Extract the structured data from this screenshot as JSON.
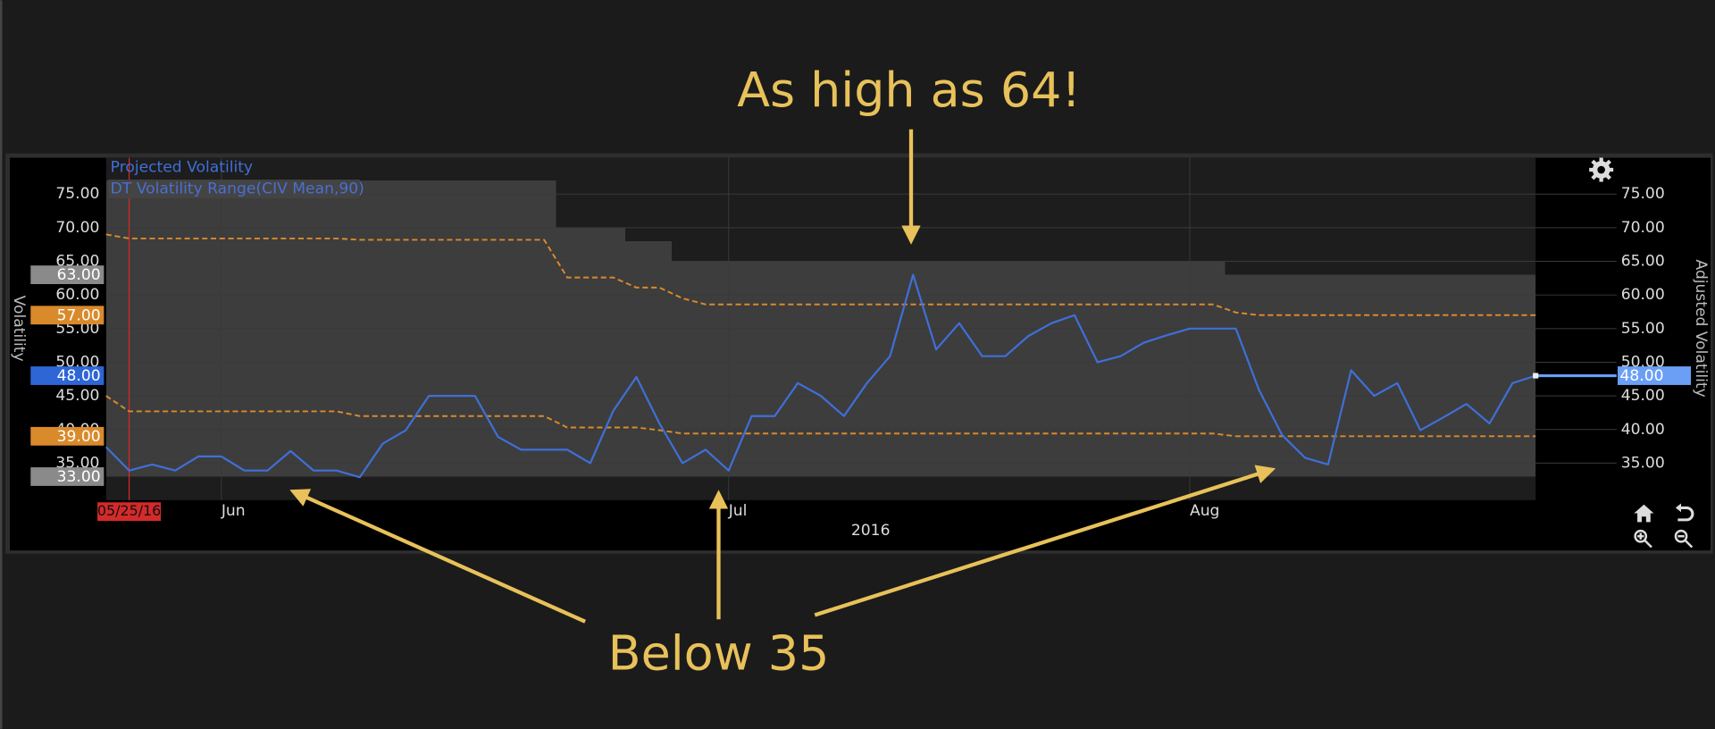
{
  "chart_data": {
    "type": "line",
    "ylabel": "Volatility",
    "y2label": "Adjusted Volatility",
    "xlabel": "2016",
    "categories": [
      null,
      "05/25/16",
      null,
      null,
      null,
      "Jun",
      null,
      null,
      null,
      null,
      null,
      null,
      null,
      null,
      null,
      null,
      null,
      null,
      null,
      null,
      null,
      null,
      null,
      null,
      null,
      null,
      null,
      "Jul",
      null,
      null,
      null,
      null,
      null,
      null,
      null,
      null,
      null,
      null,
      null,
      null,
      null,
      null,
      null,
      null,
      null,
      null,
      null,
      "Aug",
      null,
      null,
      null,
      null,
      null,
      null,
      null,
      null,
      null,
      null,
      null,
      null,
      null,
      null,
      null
    ],
    "cursor_color": "#d42a2a",
    "ylim": [
      29.5,
      80.4
    ],
    "yticks": [
      {
        "value": 35,
        "label": "35.00"
      },
      {
        "value": 40,
        "label": "40.00"
      },
      {
        "value": 45,
        "label": "45.00"
      },
      {
        "value": 50,
        "label": "50.00"
      },
      {
        "value": 55,
        "label": "55.00"
      },
      {
        "value": 60,
        "label": "60.00"
      },
      {
        "value": 65,
        "label": "65.00"
      },
      {
        "value": 70,
        "label": "70.00"
      },
      {
        "value": 75,
        "label": "75.00"
      }
    ],
    "grid": true,
    "series": [
      {
        "name": "Projected Volatility",
        "color": "#3f6fd8",
        "tag_color": "#2f66d6",
        "last_label": "48.00",
        "values": [
          37.4,
          33.9,
          34.8,
          33.9,
          36,
          36,
          33.9,
          33.9,
          36.8,
          33.9,
          33.9,
          32.9,
          37.9,
          39.9,
          45,
          45,
          45,
          38.9,
          37,
          37,
          37,
          35,
          42.8,
          47.8,
          40.9,
          35,
          37,
          33.9,
          42,
          42,
          46.9,
          45,
          42,
          46.9,
          50.9,
          63,
          51.9,
          55.8,
          50.9,
          50.9,
          53.9,
          55.8,
          57,
          50,
          50.9,
          52.9,
          54,
          55,
          55,
          55,
          45.9,
          39.2,
          35.8,
          34.8,
          48.8,
          45,
          46.9,
          39.9,
          41.8,
          43.8,
          40.9,
          46.9,
          48
        ]
      }
    ],
    "range": {
      "name": "DT Volatility Range(CIV Mean,90)",
      "color": "#4a6fd0",
      "band_color": "#3d3d3d",
      "band_tag_color": "#8a8a8a",
      "line_color": "#d98a2b",
      "high": [
        77,
        77,
        77,
        77,
        77,
        77,
        77,
        77,
        77,
        77,
        77,
        77,
        77,
        77,
        77,
        77,
        77,
        77,
        77,
        77,
        70,
        70,
        70,
        68,
        68,
        65,
        65,
        65,
        65,
        65,
        65,
        65,
        65,
        65,
        65,
        65,
        65,
        65,
        65,
        65,
        65,
        65,
        65,
        65,
        65,
        65,
        65,
        65,
        65,
        63,
        63,
        63,
        63,
        63,
        63,
        63,
        63,
        63,
        63,
        63,
        63,
        63,
        63
      ],
      "high_label": "63.00",
      "low": [
        33,
        33,
        33,
        33,
        33,
        33,
        33,
        33,
        33,
        33,
        33,
        33,
        33,
        33,
        33,
        33,
        33,
        33,
        33,
        33,
        33,
        33,
        33,
        33,
        33,
        33,
        33,
        33,
        33,
        33,
        33,
        33,
        33,
        33,
        33,
        33,
        33,
        33,
        33,
        33,
        33,
        33,
        33,
        33,
        33,
        33,
        33,
        33,
        33,
        33,
        33,
        33,
        33,
        33,
        33,
        33,
        33,
        33,
        33,
        33,
        33,
        33,
        33
      ],
      "low_label": "33.00",
      "upper": [
        69,
        68.4,
        68.4,
        68.4,
        68.4,
        68.4,
        68.4,
        68.4,
        68.4,
        68.4,
        68.4,
        68.2,
        68.2,
        68.2,
        68.2,
        68.2,
        68.2,
        68.2,
        68.2,
        68.2,
        62.6,
        62.6,
        62.6,
        61.1,
        61.1,
        59.5,
        58.6,
        58.6,
        58.6,
        58.6,
        58.6,
        58.6,
        58.6,
        58.6,
        58.6,
        58.6,
        58.6,
        58.6,
        58.6,
        58.6,
        58.6,
        58.6,
        58.6,
        58.6,
        58.6,
        58.6,
        58.6,
        58.6,
        58.6,
        57.4,
        57,
        57,
        57,
        57,
        57,
        57,
        57,
        57,
        57,
        57,
        57,
        57,
        57
      ],
      "upper_label": "57.00",
      "lower": [
        45,
        42.7,
        42.7,
        42.7,
        42.7,
        42.7,
        42.7,
        42.7,
        42.7,
        42.7,
        42.7,
        42,
        42,
        42,
        42,
        42,
        42,
        42,
        42,
        42,
        40.3,
        40.3,
        40.3,
        40.3,
        39.9,
        39.4,
        39.4,
        39.4,
        39.4,
        39.4,
        39.4,
        39.4,
        39.4,
        39.4,
        39.4,
        39.4,
        39.4,
        39.4,
        39.4,
        39.4,
        39.4,
        39.4,
        39.4,
        39.4,
        39.4,
        39.4,
        39.4,
        39.4,
        39.4,
        39,
        39,
        39,
        39,
        39,
        39,
        39,
        39,
        39,
        39,
        39,
        39,
        39,
        39
      ],
      "lower_label": "39.00"
    },
    "annotations": [
      {
        "text": "As high as 64!"
      },
      {
        "text": "Below 35"
      }
    ],
    "annotation_color": "#e8c15a"
  }
}
